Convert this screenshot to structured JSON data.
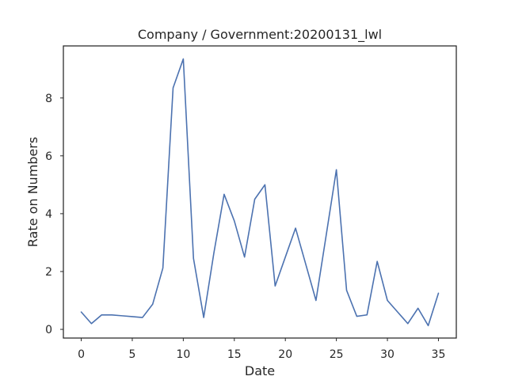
{
  "chart_data": {
    "type": "line",
    "title": "Company / Government:20200131_lwl",
    "xlabel": "Date",
    "ylabel": "Rate on Numbers",
    "xlim": [
      -1.75,
      36.75
    ],
    "ylim": [
      -0.3,
      9.8
    ],
    "xticks": [
      0,
      5,
      10,
      15,
      20,
      25,
      30,
      35
    ],
    "yticks": [
      0,
      2,
      4,
      6,
      8
    ],
    "grid": false,
    "series": [
      {
        "color": "#4c72b0",
        "x": [
          0,
          1,
          2,
          3,
          4,
          5,
          6,
          7,
          8,
          9,
          10,
          11,
          12,
          13,
          14,
          15,
          16,
          17,
          18,
          19,
          20,
          21,
          22,
          23,
          24,
          25,
          26,
          27,
          28,
          29,
          30,
          31,
          32,
          33,
          34,
          35
        ],
        "y": [
          0.6,
          0.2,
          0.5,
          0.5,
          0.47,
          0.44,
          0.41,
          0.87,
          2.12,
          8.35,
          9.35,
          2.45,
          0.41,
          2.65,
          4.67,
          3.75,
          2.5,
          4.5,
          5.0,
          1.5,
          2.5,
          3.5,
          2.25,
          1.0,
          3.25,
          5.52,
          1.35,
          0.45,
          0.5,
          2.35,
          1.0,
          0.6,
          0.2,
          0.73,
          0.13,
          1.25
        ]
      }
    ]
  }
}
